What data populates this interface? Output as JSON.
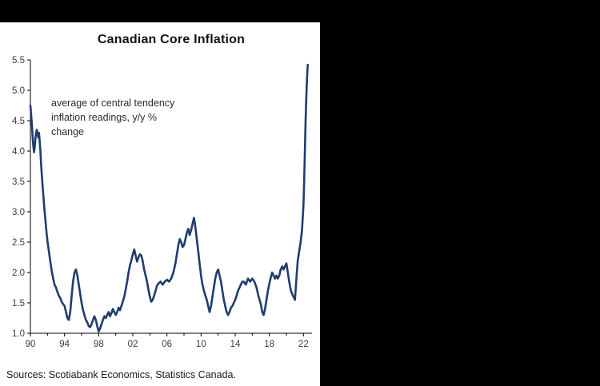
{
  "frame": {
    "background_color": "#000000",
    "panel_color": "#ffffff"
  },
  "chart_data": {
    "type": "line",
    "title": "Canadian Core Inflation",
    "annotation": "average of central tendency inflation readings, y/y % change",
    "sources": "Sources: Scotiabank Economics, Statistics Canada.",
    "line_color": "#1f3d6d",
    "axis_color": "#000000",
    "tick_label_color": "#3c3c3c",
    "grid": false,
    "legend": "none",
    "xlim": [
      1990,
      2023
    ],
    "ylim": [
      1.0,
      5.5
    ],
    "y_ticks": [
      1.0,
      1.5,
      2.0,
      2.5,
      3.0,
      3.5,
      4.0,
      4.5,
      5.0,
      5.5
    ],
    "x_ticks": [
      {
        "year": 1990,
        "label": "90"
      },
      {
        "year": 1994,
        "label": "94"
      },
      {
        "year": 1998,
        "label": "98"
      },
      {
        "year": 2002,
        "label": "02"
      },
      {
        "year": 2006,
        "label": "06"
      },
      {
        "year": 2010,
        "label": "10"
      },
      {
        "year": 2014,
        "label": "14"
      },
      {
        "year": 2018,
        "label": "18"
      },
      {
        "year": 2022,
        "label": "22"
      }
    ],
    "x_minor_ticks": [
      1992,
      1996,
      2000,
      2004,
      2008,
      2012,
      2016,
      2020
    ],
    "series": [
      {
        "name": "core inflation (average of central tendency readings, y/y % change)",
        "points": [
          [
            1990.0,
            4.75
          ],
          [
            1990.08,
            4.6
          ],
          [
            1990.17,
            4.45
          ],
          [
            1990.25,
            4.25
          ],
          [
            1990.33,
            4.1
          ],
          [
            1990.42,
            3.98
          ],
          [
            1990.5,
            4.05
          ],
          [
            1990.58,
            4.2
          ],
          [
            1990.67,
            4.3
          ],
          [
            1990.75,
            4.35
          ],
          [
            1990.83,
            4.28
          ],
          [
            1990.92,
            4.22
          ],
          [
            1991.0,
            4.3
          ],
          [
            1991.08,
            4.18
          ],
          [
            1991.17,
            4.0
          ],
          [
            1991.25,
            3.8
          ],
          [
            1991.33,
            3.62
          ],
          [
            1991.42,
            3.45
          ],
          [
            1991.5,
            3.3
          ],
          [
            1991.58,
            3.15
          ],
          [
            1991.67,
            3.0
          ],
          [
            1991.75,
            2.88
          ],
          [
            1991.83,
            2.75
          ],
          [
            1991.92,
            2.62
          ],
          [
            1992.0,
            2.52
          ],
          [
            1992.17,
            2.35
          ],
          [
            1992.33,
            2.18
          ],
          [
            1992.5,
            2.02
          ],
          [
            1992.67,
            1.9
          ],
          [
            1992.83,
            1.8
          ],
          [
            1993.0,
            1.75
          ],
          [
            1993.17,
            1.68
          ],
          [
            1993.33,
            1.62
          ],
          [
            1993.5,
            1.58
          ],
          [
            1993.67,
            1.52
          ],
          [
            1993.83,
            1.48
          ],
          [
            1994.0,
            1.45
          ],
          [
            1994.17,
            1.35
          ],
          [
            1994.33,
            1.25
          ],
          [
            1994.5,
            1.22
          ],
          [
            1994.67,
            1.35
          ],
          [
            1994.83,
            1.6
          ],
          [
            1995.0,
            1.85
          ],
          [
            1995.17,
            2.0
          ],
          [
            1995.33,
            2.05
          ],
          [
            1995.5,
            1.95
          ],
          [
            1995.67,
            1.8
          ],
          [
            1995.83,
            1.65
          ],
          [
            1996.0,
            1.5
          ],
          [
            1996.17,
            1.38
          ],
          [
            1996.33,
            1.3
          ],
          [
            1996.5,
            1.22
          ],
          [
            1996.67,
            1.18
          ],
          [
            1996.83,
            1.12
          ],
          [
            1997.0,
            1.1
          ],
          [
            1997.17,
            1.15
          ],
          [
            1997.33,
            1.22
          ],
          [
            1997.5,
            1.28
          ],
          [
            1997.67,
            1.22
          ],
          [
            1997.83,
            1.12
          ],
          [
            1998.0,
            1.03
          ],
          [
            1998.17,
            1.08
          ],
          [
            1998.33,
            1.15
          ],
          [
            1998.5,
            1.22
          ],
          [
            1998.67,
            1.28
          ],
          [
            1998.83,
            1.25
          ],
          [
            1999.0,
            1.3
          ],
          [
            1999.17,
            1.35
          ],
          [
            1999.33,
            1.28
          ],
          [
            1999.5,
            1.33
          ],
          [
            1999.67,
            1.4
          ],
          [
            1999.83,
            1.35
          ],
          [
            2000.0,
            1.3
          ],
          [
            2000.17,
            1.35
          ],
          [
            2000.33,
            1.42
          ],
          [
            2000.5,
            1.38
          ],
          [
            2000.67,
            1.45
          ],
          [
            2000.83,
            1.52
          ],
          [
            2001.0,
            1.6
          ],
          [
            2001.17,
            1.72
          ],
          [
            2001.33,
            1.85
          ],
          [
            2001.5,
            2.0
          ],
          [
            2001.67,
            2.12
          ],
          [
            2001.83,
            2.2
          ],
          [
            2002.0,
            2.3
          ],
          [
            2002.17,
            2.38
          ],
          [
            2002.33,
            2.28
          ],
          [
            2002.5,
            2.18
          ],
          [
            2002.67,
            2.25
          ],
          [
            2002.83,
            2.3
          ],
          [
            2003.0,
            2.28
          ],
          [
            2003.17,
            2.18
          ],
          [
            2003.33,
            2.05
          ],
          [
            2003.5,
            1.95
          ],
          [
            2003.67,
            1.85
          ],
          [
            2003.83,
            1.72
          ],
          [
            2004.0,
            1.6
          ],
          [
            2004.17,
            1.52
          ],
          [
            2004.33,
            1.55
          ],
          [
            2004.5,
            1.62
          ],
          [
            2004.67,
            1.7
          ],
          [
            2004.83,
            1.78
          ],
          [
            2005.0,
            1.82
          ],
          [
            2005.25,
            1.85
          ],
          [
            2005.5,
            1.8
          ],
          [
            2005.75,
            1.85
          ],
          [
            2006.0,
            1.88
          ],
          [
            2006.25,
            1.85
          ],
          [
            2006.5,
            1.9
          ],
          [
            2006.75,
            2.0
          ],
          [
            2007.0,
            2.15
          ],
          [
            2007.17,
            2.3
          ],
          [
            2007.33,
            2.45
          ],
          [
            2007.5,
            2.55
          ],
          [
            2007.67,
            2.5
          ],
          [
            2007.83,
            2.42
          ],
          [
            2008.0,
            2.45
          ],
          [
            2008.17,
            2.55
          ],
          [
            2008.33,
            2.65
          ],
          [
            2008.5,
            2.72
          ],
          [
            2008.67,
            2.62
          ],
          [
            2008.83,
            2.7
          ],
          [
            2009.0,
            2.8
          ],
          [
            2009.17,
            2.9
          ],
          [
            2009.33,
            2.75
          ],
          [
            2009.5,
            2.55
          ],
          [
            2009.67,
            2.35
          ],
          [
            2009.83,
            2.15
          ],
          [
            2010.0,
            1.95
          ],
          [
            2010.17,
            1.8
          ],
          [
            2010.33,
            1.7
          ],
          [
            2010.5,
            1.62
          ],
          [
            2010.67,
            1.55
          ],
          [
            2010.83,
            1.45
          ],
          [
            2011.0,
            1.35
          ],
          [
            2011.17,
            1.45
          ],
          [
            2011.33,
            1.6
          ],
          [
            2011.5,
            1.75
          ],
          [
            2011.67,
            1.9
          ],
          [
            2011.83,
            2.0
          ],
          [
            2012.0,
            2.05
          ],
          [
            2012.17,
            1.95
          ],
          [
            2012.33,
            1.85
          ],
          [
            2012.5,
            1.7
          ],
          [
            2012.67,
            1.55
          ],
          [
            2012.83,
            1.45
          ],
          [
            2013.0,
            1.35
          ],
          [
            2013.17,
            1.3
          ],
          [
            2013.33,
            1.35
          ],
          [
            2013.5,
            1.42
          ],
          [
            2013.67,
            1.45
          ],
          [
            2013.83,
            1.5
          ],
          [
            2014.0,
            1.55
          ],
          [
            2014.17,
            1.62
          ],
          [
            2014.33,
            1.7
          ],
          [
            2014.5,
            1.75
          ],
          [
            2014.67,
            1.8
          ],
          [
            2014.83,
            1.85
          ],
          [
            2015.0,
            1.85
          ],
          [
            2015.25,
            1.8
          ],
          [
            2015.5,
            1.9
          ],
          [
            2015.75,
            1.85
          ],
          [
            2016.0,
            1.9
          ],
          [
            2016.25,
            1.85
          ],
          [
            2016.5,
            1.75
          ],
          [
            2016.75,
            1.6
          ],
          [
            2017.0,
            1.48
          ],
          [
            2017.17,
            1.35
          ],
          [
            2017.33,
            1.3
          ],
          [
            2017.5,
            1.4
          ],
          [
            2017.67,
            1.55
          ],
          [
            2017.83,
            1.7
          ],
          [
            2018.0,
            1.82
          ],
          [
            2018.17,
            1.92
          ],
          [
            2018.33,
            2.0
          ],
          [
            2018.5,
            1.95
          ],
          [
            2018.67,
            1.9
          ],
          [
            2018.83,
            1.95
          ],
          [
            2019.0,
            1.9
          ],
          [
            2019.17,
            1.95
          ],
          [
            2019.33,
            2.05
          ],
          [
            2019.5,
            2.1
          ],
          [
            2019.67,
            2.05
          ],
          [
            2019.83,
            2.1
          ],
          [
            2020.0,
            2.15
          ],
          [
            2020.17,
            2.0
          ],
          [
            2020.33,
            1.85
          ],
          [
            2020.5,
            1.72
          ],
          [
            2020.67,
            1.65
          ],
          [
            2020.83,
            1.6
          ],
          [
            2021.0,
            1.55
          ],
          [
            2021.17,
            1.9
          ],
          [
            2021.33,
            2.2
          ],
          [
            2021.5,
            2.35
          ],
          [
            2021.67,
            2.5
          ],
          [
            2021.83,
            2.7
          ],
          [
            2022.0,
            3.1
          ],
          [
            2022.08,
            3.5
          ],
          [
            2022.17,
            4.0
          ],
          [
            2022.25,
            4.5
          ],
          [
            2022.33,
            4.9
          ],
          [
            2022.42,
            5.2
          ],
          [
            2022.5,
            5.42
          ]
        ]
      }
    ]
  }
}
